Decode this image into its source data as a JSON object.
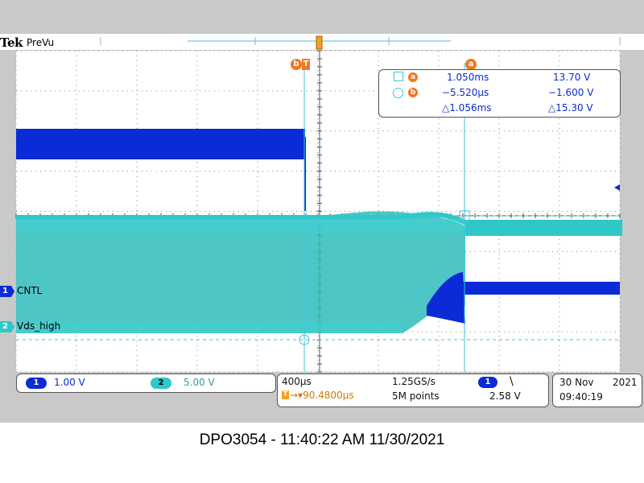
{
  "instrument": {
    "brand": "Tek",
    "mode": "PreVu"
  },
  "channels": [
    {
      "number": "1",
      "label": "CNTL",
      "scale": "1.00 V",
      "color": "#0a2bd6"
    },
    {
      "number": "2",
      "label": "Vds_high",
      "scale": "5.00 V",
      "color": "#2ec8c8"
    }
  ],
  "cursors": {
    "a_label": "a",
    "b_label": "b",
    "readout": {
      "a_time": "1.050ms",
      "a_value": "13.70 V",
      "b_time": "−5.520µs",
      "b_value": "−1.600 V",
      "delta_time": "△1.056ms",
      "delta_value": "△15.30 V"
    }
  },
  "trigger_marker": "T",
  "horizontal": {
    "scale": "400µs",
    "delay": "→▾90.4800µs",
    "sample_rate": "1.25GS/s",
    "record_length": "5M points"
  },
  "trigger": {
    "channel": "1",
    "slope": "\\",
    "level": "2.58 V"
  },
  "datetime": {
    "date": "30 Nov",
    "year": "2021",
    "time": "09:40:19"
  },
  "caption": "DPO3054 - 11:40:22 AM    11/30/2021",
  "colors": {
    "ch1": "#0a2bd6",
    "ch2": "#2ec8c8",
    "cursor": "#3cc6d8",
    "bubble": "#f07820",
    "trigger": "#f0a020"
  }
}
